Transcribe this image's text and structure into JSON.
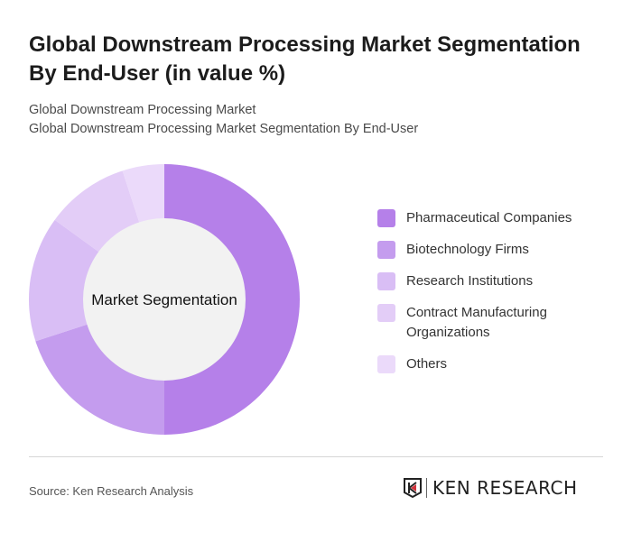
{
  "title": "Global Downstream Processing Market Segmentation By End-User (in value %)",
  "subtitle_1": "Global Downstream Processing Market",
  "subtitle_2": "Global Downstream Processing Market Segmentation By End-User",
  "chart_data": {
    "type": "pie",
    "variant": "donut",
    "center_label": "Market Segmentation",
    "categories": [
      "Pharmaceutical Companies",
      "Biotechnology Firms",
      "Research Institutions",
      "Contract Manufacturing Organizations",
      "Others"
    ],
    "values": [
      50,
      20,
      15,
      10,
      5
    ],
    "colors": [
      "#b580e9",
      "#c49cee",
      "#d9bef5",
      "#e3cdf7",
      "#ebdafa"
    ],
    "legend_position": "right",
    "center_color": "#f2f2f2"
  },
  "source": "Source: Ken Research Analysis",
  "logo": "KEN RESEARCH"
}
